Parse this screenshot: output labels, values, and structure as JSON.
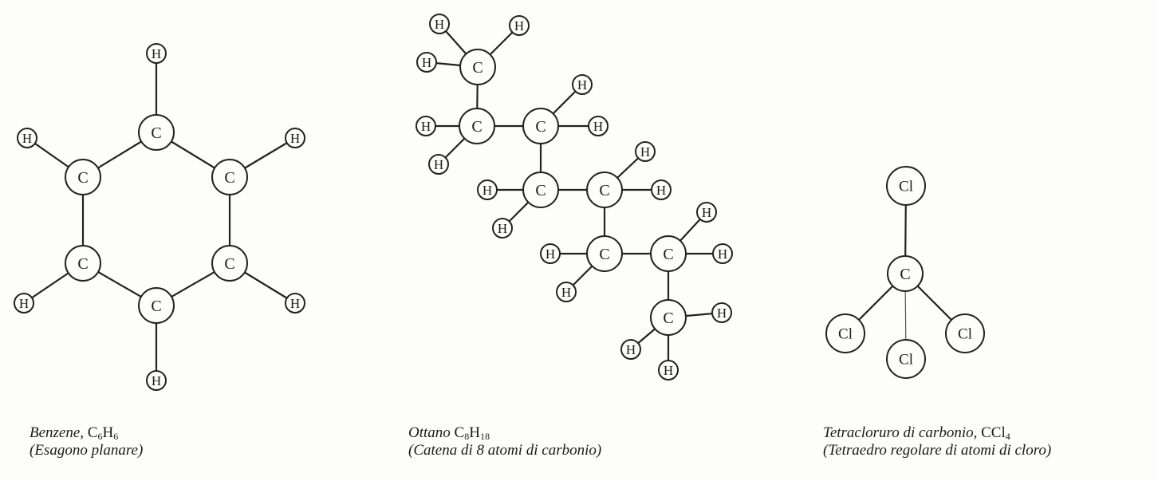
{
  "benzene": {
    "caption_name": "Benzene,",
    "formula": [
      {
        "t": "C"
      },
      {
        "s": "6"
      },
      {
        "t": "H"
      },
      {
        "s": "6"
      }
    ],
    "caption_sub": "(Esagono planare)",
    "atoms": [
      {
        "id": "c1",
        "el": "C"
      },
      {
        "id": "c2",
        "el": "C"
      },
      {
        "id": "c3",
        "el": "C"
      },
      {
        "id": "c4",
        "el": "C"
      },
      {
        "id": "c5",
        "el": "C"
      },
      {
        "id": "c6",
        "el": "C"
      },
      {
        "id": "h1",
        "el": "H"
      },
      {
        "id": "h2",
        "el": "H"
      },
      {
        "id": "h3",
        "el": "H"
      },
      {
        "id": "h4",
        "el": "H"
      },
      {
        "id": "h5",
        "el": "H"
      },
      {
        "id": "h6",
        "el": "H"
      }
    ],
    "bonds": [
      [
        "c1",
        "c2"
      ],
      [
        "c2",
        "c3"
      ],
      [
        "c3",
        "c4"
      ],
      [
        "c4",
        "c5"
      ],
      [
        "c5",
        "c6"
      ],
      [
        "c6",
        "c1"
      ],
      [
        "c1",
        "h1"
      ],
      [
        "c2",
        "h2"
      ],
      [
        "c3",
        "h3"
      ],
      [
        "c4",
        "h4"
      ],
      [
        "c5",
        "h5"
      ],
      [
        "c6",
        "h6"
      ]
    ]
  },
  "octane": {
    "caption_name": "Ottano",
    "formula": [
      {
        "t": "C"
      },
      {
        "s": "8"
      },
      {
        "t": "H"
      },
      {
        "s": "18"
      }
    ],
    "caption_sub": "(Catena di 8 atomi di carbonio)",
    "atoms": [
      {
        "id": "c1",
        "el": "C"
      },
      {
        "id": "c2",
        "el": "C"
      },
      {
        "id": "c3",
        "el": "C"
      },
      {
        "id": "c4",
        "el": "C"
      },
      {
        "id": "c5",
        "el": "C"
      },
      {
        "id": "c6",
        "el": "C"
      },
      {
        "id": "c7",
        "el": "C"
      },
      {
        "id": "c8",
        "el": "C"
      },
      {
        "id": "h1",
        "el": "H"
      },
      {
        "id": "h2",
        "el": "H"
      },
      {
        "id": "h3",
        "el": "H"
      },
      {
        "id": "h4",
        "el": "H"
      },
      {
        "id": "h5",
        "el": "H"
      },
      {
        "id": "h6",
        "el": "H"
      },
      {
        "id": "h7",
        "el": "H"
      },
      {
        "id": "h8",
        "el": "H"
      },
      {
        "id": "h9",
        "el": "H"
      },
      {
        "id": "h10",
        "el": "H"
      },
      {
        "id": "h11",
        "el": "H"
      },
      {
        "id": "h12",
        "el": "H"
      },
      {
        "id": "h13",
        "el": "H"
      },
      {
        "id": "h14",
        "el": "H"
      },
      {
        "id": "h15",
        "el": "H"
      },
      {
        "id": "h16",
        "el": "H"
      },
      {
        "id": "h17",
        "el": "H"
      },
      {
        "id": "h18",
        "el": "H"
      }
    ],
    "bonds": [
      [
        "c1",
        "c2"
      ],
      [
        "c2",
        "c3"
      ],
      [
        "c3",
        "c4"
      ],
      [
        "c4",
        "c5"
      ],
      [
        "c5",
        "c6"
      ],
      [
        "c6",
        "c7"
      ],
      [
        "c7",
        "c8"
      ],
      [
        "c1",
        "h1"
      ],
      [
        "c1",
        "h2"
      ],
      [
        "c1",
        "h3"
      ],
      [
        "c2",
        "h4"
      ],
      [
        "c2",
        "h5"
      ],
      [
        "c3",
        "h6"
      ],
      [
        "c3",
        "h7"
      ],
      [
        "c4",
        "h8"
      ],
      [
        "c4",
        "h9"
      ],
      [
        "c5",
        "h10"
      ],
      [
        "c5",
        "h11"
      ],
      [
        "c6",
        "h12"
      ],
      [
        "c6",
        "h13"
      ],
      [
        "c7",
        "h14"
      ],
      [
        "c7",
        "h15"
      ],
      [
        "c8",
        "h16"
      ],
      [
        "c8",
        "h17"
      ],
      [
        "c8",
        "h18"
      ]
    ]
  },
  "ccl4": {
    "caption_name": "Tetracloruro di carbonio,",
    "formula": [
      {
        "t": "CCl"
      },
      {
        "s": "4"
      }
    ],
    "caption_sub": "(Tetraedro regolare di atomi di cloro)",
    "atoms": [
      {
        "id": "c",
        "el": "C"
      },
      {
        "id": "cl1",
        "el": "Cl"
      },
      {
        "id": "cl2",
        "el": "Cl"
      },
      {
        "id": "cl3",
        "el": "Cl"
      },
      {
        "id": "cl4",
        "el": "Cl"
      }
    ],
    "bonds": [
      [
        "c",
        "cl1"
      ],
      [
        "c",
        "cl2"
      ],
      [
        "c",
        "cl3"
      ],
      [
        "c",
        "cl4"
      ]
    ]
  }
}
